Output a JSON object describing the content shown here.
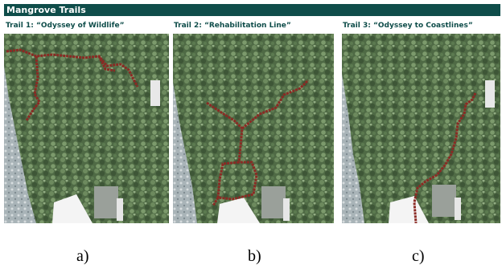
{
  "header": {
    "title": "Mangrove Trails"
  },
  "panels": [
    {
      "title": "Trail 1: “Odyssey of Wildlife”",
      "label": "a)"
    },
    {
      "title": "Trail 2: “Rehabilitation Line”",
      "label": "b)"
    },
    {
      "title": "Trail 3: “Odyssey to Coastlines”",
      "label": "c)"
    }
  ]
}
